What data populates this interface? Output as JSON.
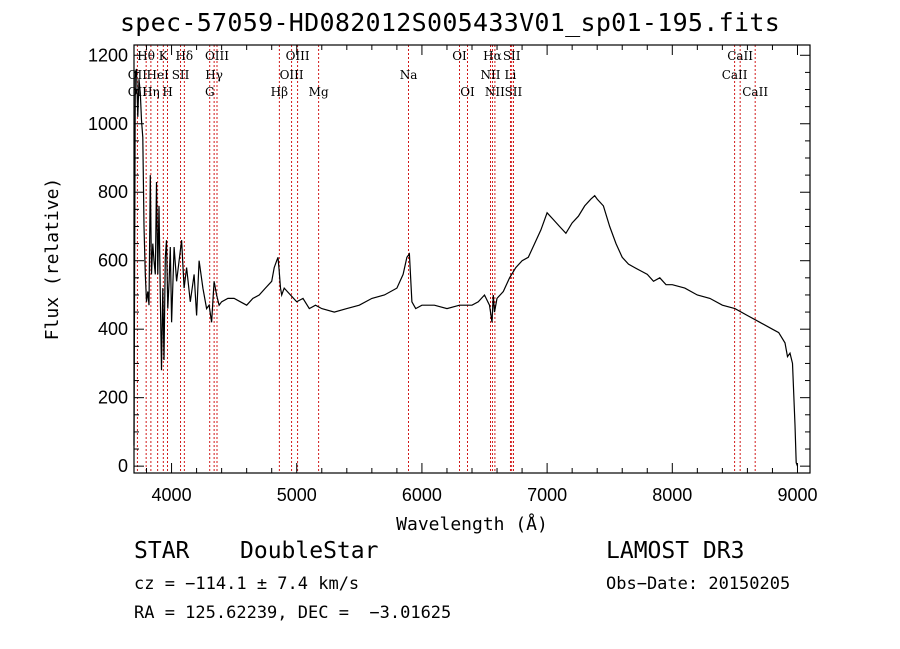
{
  "chart_data": {
    "type": "line",
    "title": "spec-57059-HD082012S005433V01_sp01-195.fits",
    "xlabel": "Wavelength (Å)",
    "ylabel": "Flux (relative)",
    "xlim": [
      3700,
      9100
    ],
    "ylim": [
      -20,
      1230
    ],
    "x_ticks": [
      4000,
      5000,
      6000,
      7000,
      8000,
      9000
    ],
    "x_tick_labels": [
      "4000",
      "5000",
      "6000",
      "7000",
      "8000",
      "9000"
    ],
    "y_ticks": [
      0,
      200,
      400,
      600,
      800,
      1000,
      1200
    ],
    "y_tick_labels": [
      "0",
      "200",
      "400",
      "600",
      "800",
      "1000",
      "1200"
    ],
    "series": [
      {
        "name": "spectrum",
        "x": [
          3700,
          3710,
          3720,
          3730,
          3740,
          3750,
          3760,
          3770,
          3780,
          3790,
          3800,
          3810,
          3820,
          3830,
          3840,
          3850,
          3860,
          3870,
          3880,
          3890,
          3900,
          3910,
          3920,
          3930,
          3940,
          3950,
          3960,
          3970,
          3980,
          3990,
          4000,
          4020,
          4040,
          4060,
          4080,
          4100,
          4120,
          4150,
          4180,
          4200,
          4220,
          4250,
          4280,
          4300,
          4320,
          4340,
          4360,
          4380,
          4400,
          4450,
          4500,
          4550,
          4600,
          4650,
          4700,
          4750,
          4800,
          4820,
          4840,
          4850,
          4860,
          4870,
          4880,
          4900,
          4950,
          5000,
          5050,
          5100,
          5150,
          5200,
          5300,
          5400,
          5500,
          5600,
          5700,
          5800,
          5850,
          5880,
          5900,
          5920,
          5950,
          6000,
          6100,
          6200,
          6300,
          6400,
          6450,
          6500,
          6540,
          6560,
          6570,
          6580,
          6600,
          6650,
          6700,
          6750,
          6800,
          6850,
          6900,
          6950,
          7000,
          7050,
          7100,
          7150,
          7200,
          7250,
          7300,
          7350,
          7380,
          7400,
          7450,
          7500,
          7550,
          7600,
          7650,
          7700,
          7750,
          7800,
          7850,
          7900,
          7950,
          8000,
          8100,
          8200,
          8300,
          8400,
          8500,
          8600,
          8700,
          8800,
          8850,
          8900,
          8920,
          8940,
          8960,
          8980,
          8990,
          9000
        ],
        "values": [
          60,
          1150,
          1160,
          1020,
          1130,
          1090,
          1010,
          960,
          700,
          560,
          480,
          510,
          470,
          850,
          560,
          650,
          600,
          560,
          830,
          560,
          760,
          500,
          280,
          520,
          310,
          610,
          660,
          460,
          540,
          640,
          420,
          640,
          540,
          600,
          660,
          520,
          580,
          480,
          560,
          440,
          600,
          520,
          460,
          470,
          420,
          540,
          500,
          470,
          480,
          490,
          490,
          480,
          470,
          490,
          500,
          520,
          540,
          580,
          600,
          610,
          570,
          520,
          500,
          520,
          500,
          480,
          490,
          460,
          470,
          460,
          450,
          460,
          470,
          490,
          500,
          520,
          560,
          610,
          620,
          480,
          460,
          470,
          470,
          460,
          470,
          470,
          480,
          500,
          470,
          420,
          500,
          450,
          490,
          510,
          550,
          580,
          600,
          610,
          650,
          690,
          740,
          720,
          700,
          680,
          710,
          730,
          760,
          780,
          790,
          780,
          760,
          700,
          650,
          610,
          590,
          580,
          570,
          560,
          540,
          550,
          530,
          530,
          520,
          500,
          490,
          470,
          460,
          440,
          420,
          400,
          390,
          360,
          320,
          330,
          300,
          120,
          10,
          0
        ]
      }
    ],
    "spectral_lines": [
      {
        "label": "OII",
        "wavelength": 3727,
        "row": 2
      },
      {
        "label": "Hθ",
        "wavelength": 3797,
        "row": 0
      },
      {
        "label": "OII",
        "wavelength": 3727,
        "row": 1
      },
      {
        "label": "Hη",
        "wavelength": 3835,
        "row": 2
      },
      {
        "label": "HeI",
        "wavelength": 3889,
        "row": 1
      },
      {
        "label": "K",
        "wavelength": 3934,
        "row": 0
      },
      {
        "label": "H",
        "wavelength": 3968,
        "row": 2
      },
      {
        "label": "SII",
        "wavelength": 4072,
        "row": 1
      },
      {
        "label": "Hδ",
        "wavelength": 4102,
        "row": 0
      },
      {
        "label": "OIII",
        "wavelength": 4363,
        "row": 0
      },
      {
        "label": "Hγ",
        "wavelength": 4340,
        "row": 1
      },
      {
        "label": "G",
        "wavelength": 4305,
        "row": 2
      },
      {
        "label": "Hβ",
        "wavelength": 4861,
        "row": 2
      },
      {
        "label": "OIII",
        "wavelength": 5007,
        "row": 0
      },
      {
        "label": "OIII",
        "wavelength": 4959,
        "row": 1
      },
      {
        "label": "Mg",
        "wavelength": 5175,
        "row": 2
      },
      {
        "label": "Na",
        "wavelength": 5893,
        "row": 1
      },
      {
        "label": "OI",
        "wavelength": 6300,
        "row": 0
      },
      {
        "label": "OI",
        "wavelength": 6364,
        "row": 2
      },
      {
        "label": "Hα",
        "wavelength": 6563,
        "row": 0
      },
      {
        "label": "NII",
        "wavelength": 6548,
        "row": 1
      },
      {
        "label": "NII",
        "wavelength": 6583,
        "row": 2
      },
      {
        "label": "SII",
        "wavelength": 6717,
        "row": 0
      },
      {
        "label": "Li",
        "wavelength": 6707,
        "row": 1
      },
      {
        "label": "SII",
        "wavelength": 6731,
        "row": 2
      },
      {
        "label": "CaII",
        "wavelength": 8542,
        "row": 0
      },
      {
        "label": "CaII",
        "wavelength": 8498,
        "row": 1
      },
      {
        "label": "CaII",
        "wavelength": 8662,
        "row": 2
      }
    ]
  },
  "info": {
    "class": "STAR",
    "subclass": "DoubleStar",
    "survey": "LAMOST DR3",
    "cz": "cz = −114.1 ± 7.4 km/s",
    "obs_date": "Obs−Date: 20150205",
    "radec": "RA = 125.62239, DEC =  −3.01625"
  },
  "colors": {
    "line_marker": "#cc0000",
    "spectrum": "#000000"
  }
}
